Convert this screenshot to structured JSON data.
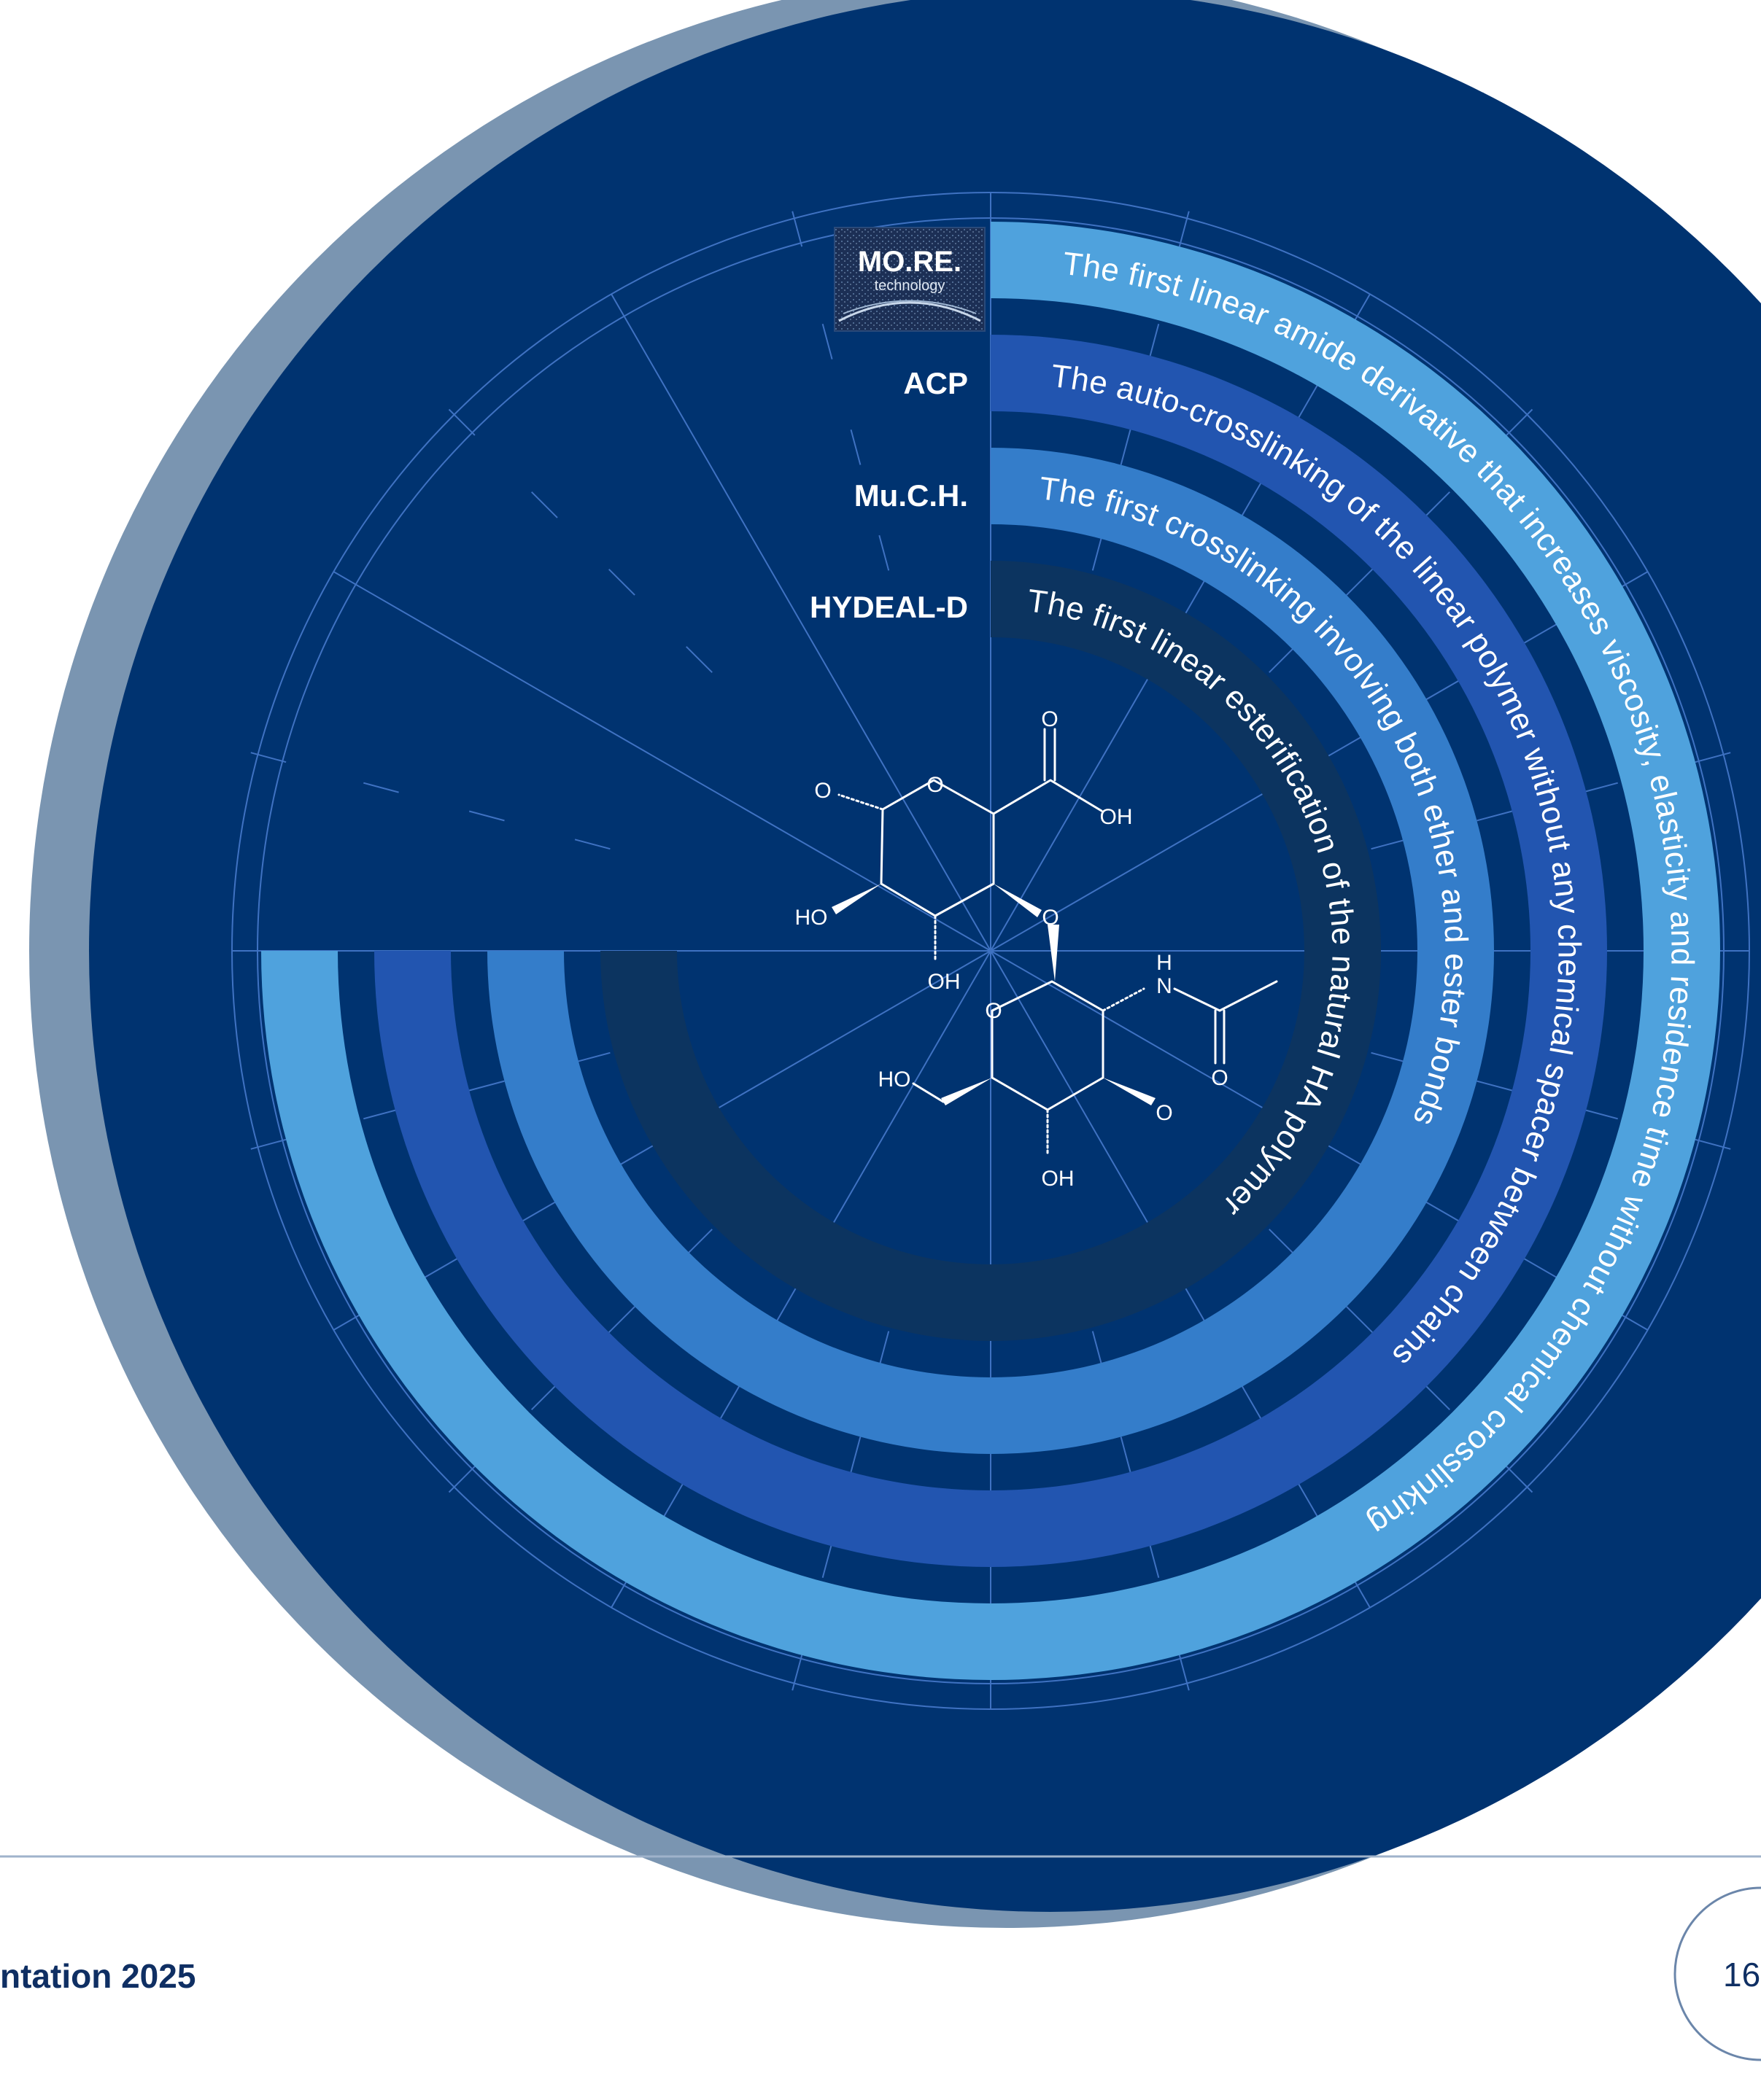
{
  "colors": {
    "background": "#ffffff",
    "shadow_circle": "#7a95b1",
    "main_circle": "#003370",
    "grid_line": "#3f72c2",
    "footer_line": "#9fb3cb",
    "footer_text": "#0f2f63",
    "page_circle": "#6b86aa"
  },
  "logo": {
    "title": "MO.RE.",
    "subtitle": "technology"
  },
  "technologies": [
    {
      "label": "",
      "uses_logo": true,
      "description": "The first linear amide derivative that increases viscosity, elasticity and residence time without chemical crosslinking",
      "color": "#4fa2dd"
    },
    {
      "label": "ACP",
      "uses_logo": false,
      "description": "The auto-crosslinking of the linear polymer without any chemical spacer between chains",
      "color": "#2255b0"
    },
    {
      "label": "Mu.C.H.",
      "uses_logo": false,
      "description": "The first crosslinking involving both ether and ester bonds",
      "color": "#347dca"
    },
    {
      "label": "HYDEAL-D",
      "uses_logo": false,
      "description": "The first linear esterification of the natural HA polymer",
      "color": "#0c3460"
    }
  ],
  "molecule": {
    "atoms": {
      "o_top": "O",
      "oh_right": "OH",
      "o_ring1": "O",
      "o_left": "O",
      "ho_left": "HO",
      "oh_bottom1": "OH",
      "o_link": "O",
      "h_amide": "H",
      "n_amide": "N",
      "o_amide": "O",
      "o_ring2": "O",
      "ho_ring2": "HO",
      "o_right2": "O",
      "oh_bottom2": "OH"
    }
  },
  "footer": {
    "text": "ntation 2025",
    "page_number": "16"
  }
}
